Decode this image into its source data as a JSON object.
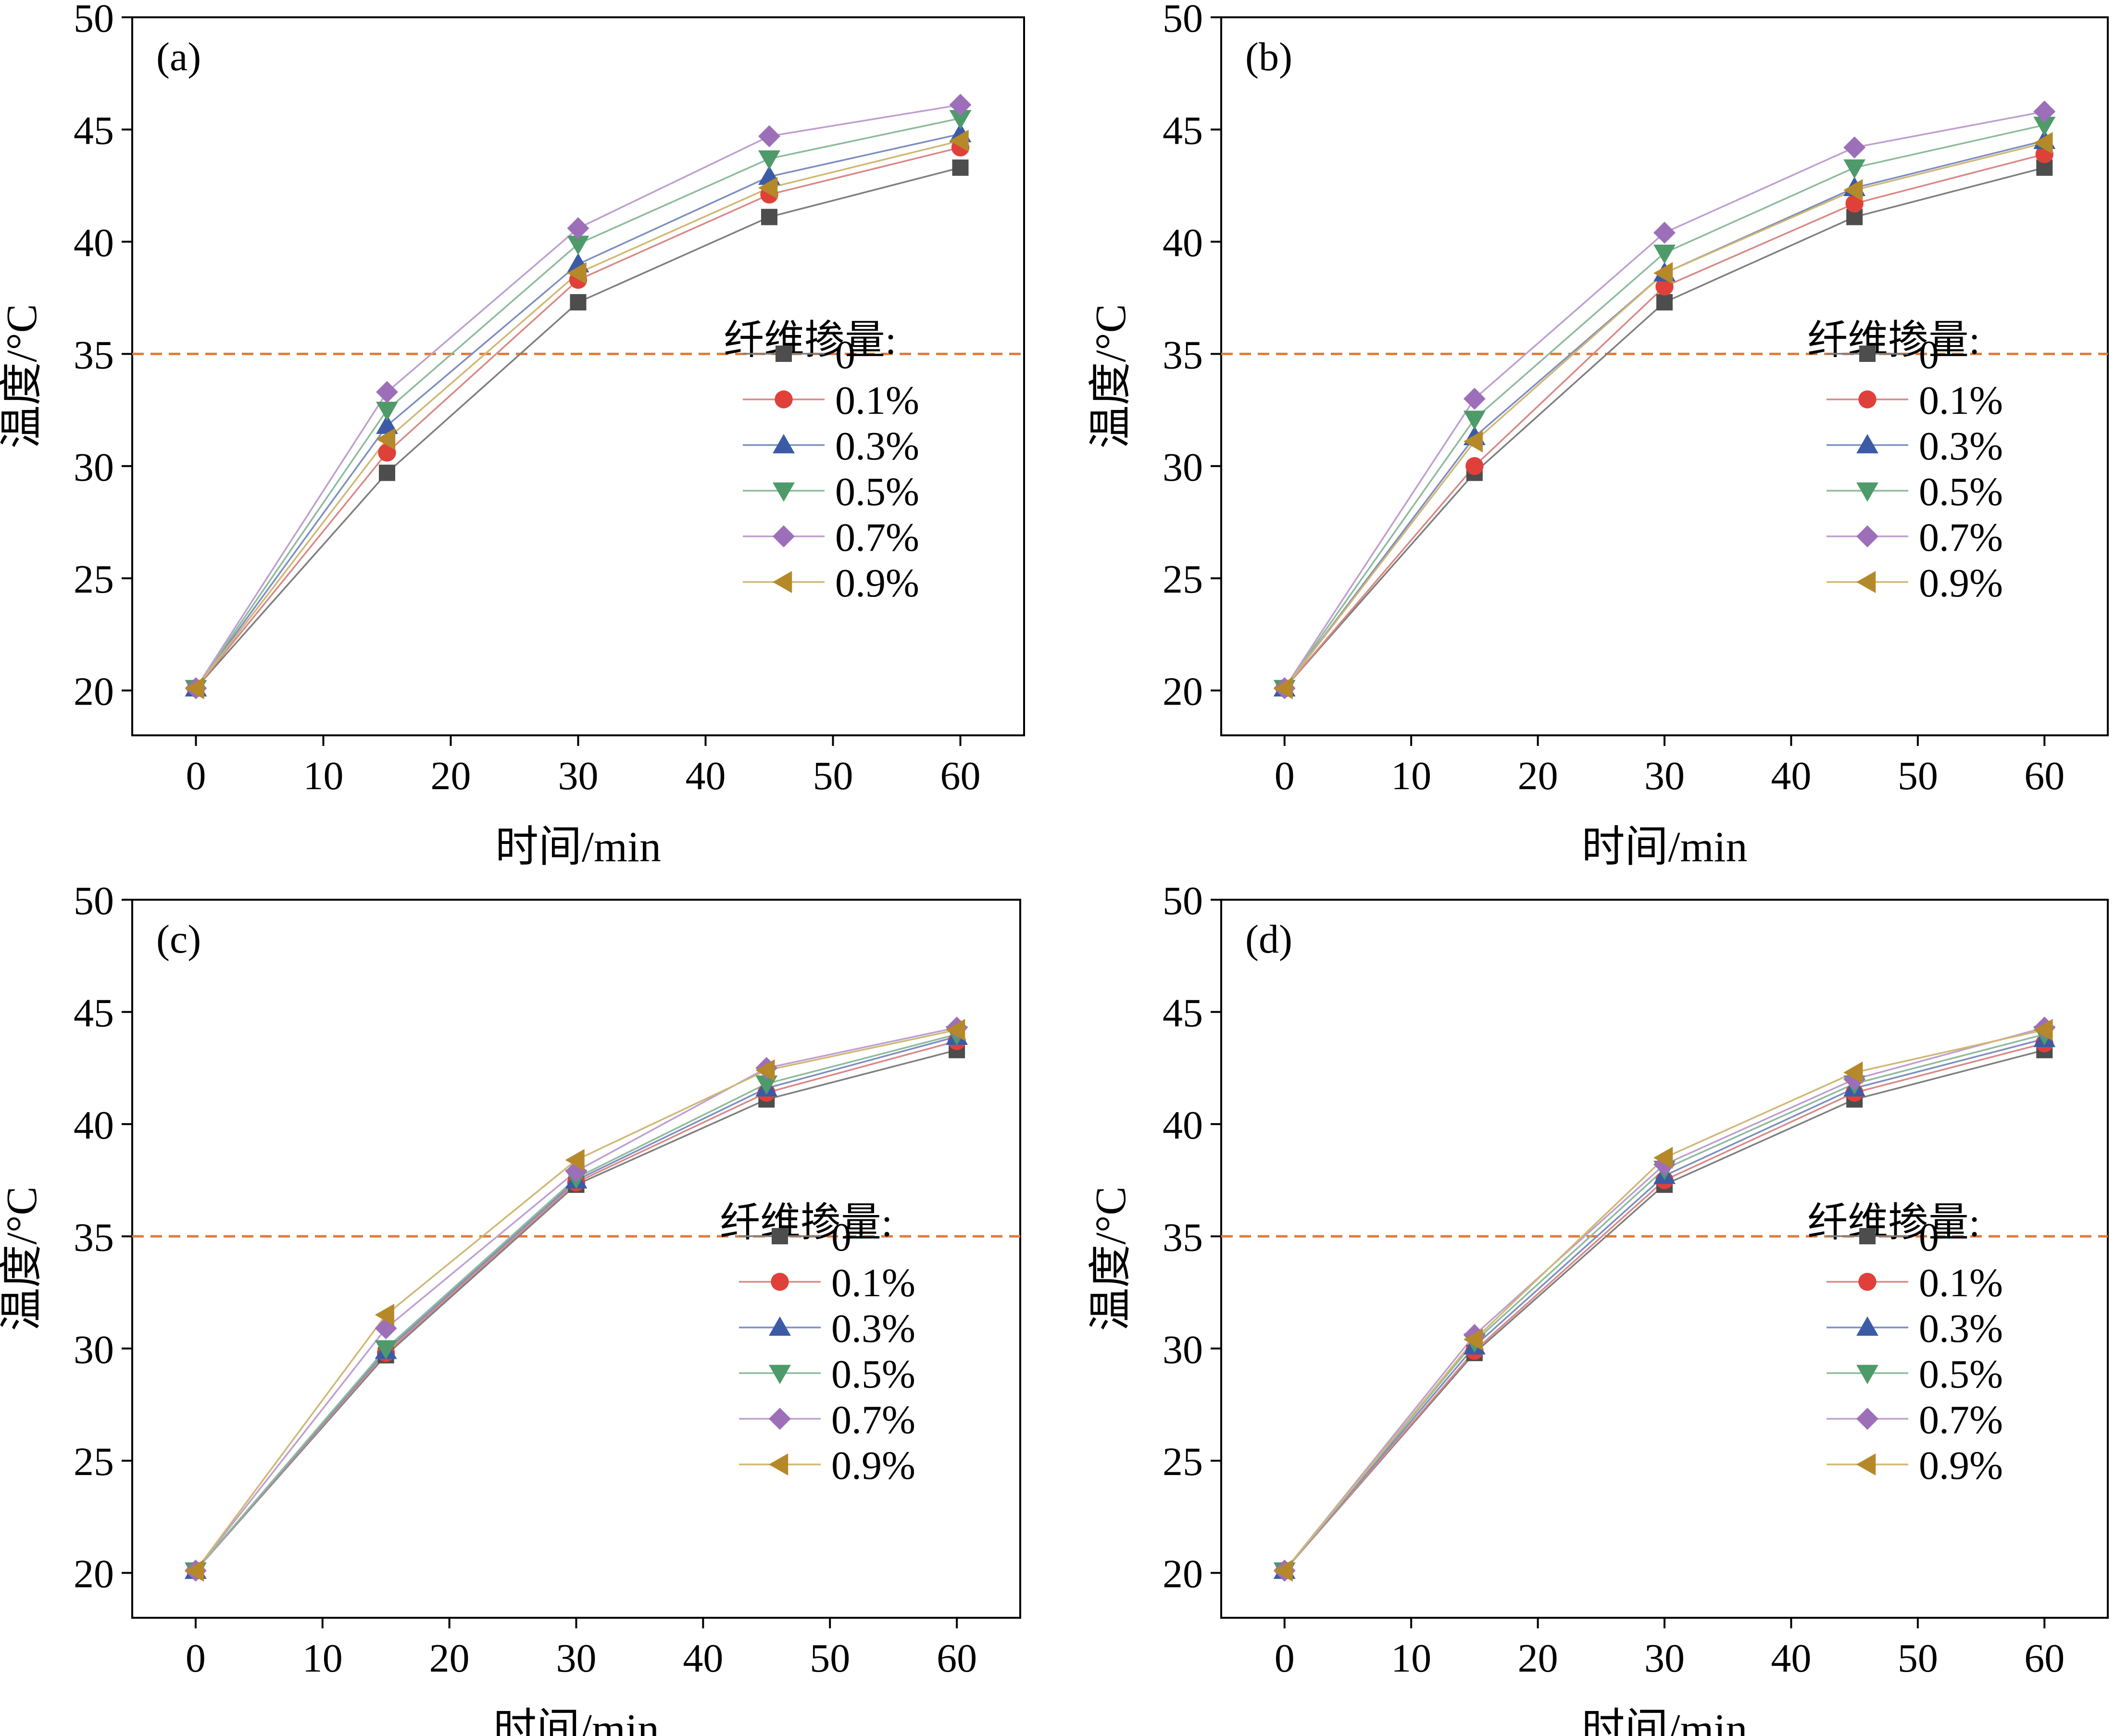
{
  "chart_data": [
    {
      "panel_label": "(a)",
      "type": "line",
      "xlabel": "时间/min",
      "ylabel": "温度/°C",
      "xlim": [
        -5,
        65
      ],
      "ylim": [
        18,
        50
      ],
      "xticks": [
        0,
        10,
        20,
        30,
        40,
        50,
        60
      ],
      "yticks": [
        20,
        25,
        30,
        35,
        40,
        45,
        50
      ],
      "reference_line": {
        "y": 35,
        "style": "dashed",
        "color": "#E07B3C"
      },
      "legend_title": "纤维掺量:",
      "x": [
        0,
        15,
        30,
        45,
        60
      ],
      "series": [
        {
          "name": "0",
          "values": [
            20.1,
            29.7,
            37.3,
            41.1,
            43.3
          ]
        },
        {
          "name": "0.1%",
          "values": [
            20.1,
            30.6,
            38.3,
            42.1,
            44.2
          ]
        },
        {
          "name": "0.3%",
          "values": [
            20.1,
            31.8,
            39.0,
            42.9,
            44.8
          ]
        },
        {
          "name": "0.5%",
          "values": [
            20.1,
            32.5,
            39.9,
            43.7,
            45.5
          ]
        },
        {
          "name": "0.7%",
          "values": [
            20.1,
            33.3,
            40.6,
            44.7,
            46.1
          ]
        },
        {
          "name": "0.9%",
          "values": [
            20.1,
            31.2,
            38.6,
            42.4,
            44.5
          ]
        }
      ]
    },
    {
      "panel_label": "(b)",
      "type": "line",
      "xlabel": "时间/min",
      "ylabel": "温度/°C",
      "xlim": [
        -5,
        65
      ],
      "ylim": [
        18,
        50
      ],
      "xticks": [
        0,
        10,
        20,
        30,
        40,
        50,
        60
      ],
      "yticks": [
        20,
        25,
        30,
        35,
        40,
        45,
        50
      ],
      "reference_line": {
        "y": 35,
        "style": "dashed",
        "color": "#E07B3C"
      },
      "legend_title": "纤维掺量:",
      "x": [
        0,
        15,
        30,
        45,
        60
      ],
      "series": [
        {
          "name": "0",
          "values": [
            20.1,
            29.7,
            37.3,
            41.1,
            43.3
          ]
        },
        {
          "name": "0.1%",
          "values": [
            20.1,
            30.0,
            38.0,
            41.7,
            43.9
          ]
        },
        {
          "name": "0.3%",
          "values": [
            20.1,
            31.3,
            38.6,
            42.4,
            44.5
          ]
        },
        {
          "name": "0.5%",
          "values": [
            20.1,
            32.1,
            39.5,
            43.3,
            45.2
          ]
        },
        {
          "name": "0.7%",
          "values": [
            20.1,
            33.0,
            40.4,
            44.2,
            45.8
          ]
        },
        {
          "name": "0.9%",
          "values": [
            20.1,
            31.1,
            38.6,
            42.3,
            44.4
          ]
        }
      ]
    },
    {
      "panel_label": "(c)",
      "type": "line",
      "xlabel": "时间/min",
      "ylabel": "温度/°C",
      "xlim": [
        -5,
        65
      ],
      "ylim": [
        18,
        50
      ],
      "xticks": [
        0,
        10,
        20,
        30,
        40,
        50,
        60
      ],
      "yticks": [
        20,
        25,
        30,
        35,
        40,
        45,
        50
      ],
      "reference_line": {
        "y": 35,
        "style": "dashed",
        "color": "#E07B3C"
      },
      "legend_title": "纤维掺量:",
      "x": [
        0,
        15,
        30,
        45,
        60
      ],
      "series": [
        {
          "name": "0",
          "values": [
            20.1,
            29.7,
            37.3,
            41.1,
            43.3
          ]
        },
        {
          "name": "0.1%",
          "values": [
            20.1,
            29.8,
            37.4,
            41.4,
            43.7
          ]
        },
        {
          "name": "0.3%",
          "values": [
            20.1,
            29.9,
            37.5,
            41.6,
            43.9
          ]
        },
        {
          "name": "0.5%",
          "values": [
            20.1,
            30.0,
            37.6,
            41.8,
            44.0
          ]
        },
        {
          "name": "0.7%",
          "values": [
            20.1,
            30.9,
            37.9,
            42.5,
            44.3
          ]
        },
        {
          "name": "0.9%",
          "values": [
            20.1,
            31.5,
            38.4,
            42.4,
            44.2
          ]
        }
      ]
    },
    {
      "panel_label": "(d)",
      "type": "line",
      "xlabel": "时间/min",
      "ylabel": "温度/°C",
      "xlim": [
        -5,
        65
      ],
      "ylim": [
        18,
        50
      ],
      "xticks": [
        0,
        10,
        20,
        30,
        40,
        50,
        60
      ],
      "yticks": [
        20,
        25,
        30,
        35,
        40,
        45,
        50
      ],
      "reference_line": {
        "y": 35,
        "style": "dashed",
        "color": "#E07B3C"
      },
      "legend_title": "纤维掺量:",
      "x": [
        0,
        15,
        30,
        45,
        60
      ],
      "series": [
        {
          "name": "0",
          "values": [
            20.1,
            29.8,
            37.3,
            41.1,
            43.3
          ]
        },
        {
          "name": "0.1%",
          "values": [
            20.1,
            29.9,
            37.5,
            41.4,
            43.6
          ]
        },
        {
          "name": "0.3%",
          "values": [
            20.1,
            30.1,
            37.7,
            41.6,
            43.8
          ]
        },
        {
          "name": "0.5%",
          "values": [
            20.1,
            30.3,
            38.0,
            41.8,
            44.0
          ]
        },
        {
          "name": "0.7%",
          "values": [
            20.1,
            30.6,
            38.2,
            42.0,
            44.3
          ]
        },
        {
          "name": "0.9%",
          "values": [
            20.1,
            30.4,
            38.5,
            42.3,
            44.2
          ]
        }
      ]
    }
  ],
  "style": {
    "series_colors": [
      "#4D4D4D",
      "#E0403A",
      "#3B5BA6",
      "#4F9A6A",
      "#9D6FB8",
      "#B5892A"
    ],
    "line_colors": [
      "#7F7F7F",
      "#D98986",
      "#7C8FC0",
      "#8DBB9C",
      "#BE9FD0",
      "#D0B774"
    ],
    "markers": [
      "square",
      "circle",
      "triangle-up",
      "triangle-down",
      "diamond",
      "triangle-left"
    ]
  }
}
